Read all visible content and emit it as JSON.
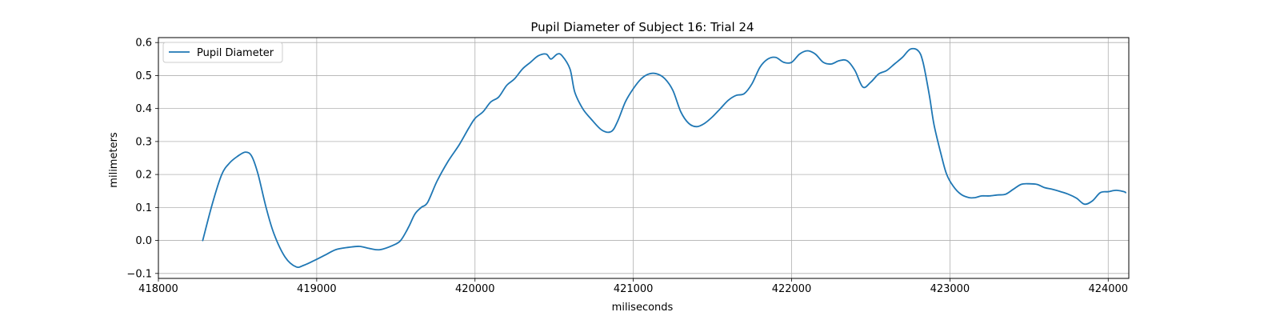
{
  "chart_data": {
    "type": "line",
    "title": "Pupil Diameter of Subject 16: Trial 24",
    "xlabel": "miliseconds",
    "ylabel": "milimeters",
    "xlim": [
      418000,
      424130
    ],
    "ylim": [
      -0.115,
      0.615
    ],
    "xticks": [
      418000,
      419000,
      420000,
      421000,
      422000,
      423000,
      424000
    ],
    "yticks": [
      -0.1,
      0.0,
      0.1,
      0.2,
      0.3,
      0.4,
      0.5,
      0.6
    ],
    "xtick_labels": [
      "418000",
      "419000",
      "420000",
      "421000",
      "422000",
      "423000",
      "424000"
    ],
    "ytick_labels": [
      "−0.1",
      "0.0",
      "0.1",
      "0.2",
      "0.3",
      "0.4",
      "0.5",
      "0.6"
    ],
    "grid": true,
    "legend": "upper-left",
    "series": [
      {
        "name": "Pupil Diameter",
        "color": "#1f77b4",
        "x": [
          418280,
          418340,
          418400,
          418450,
          418500,
          418550,
          418590,
          418630,
          418680,
          418730,
          418800,
          418870,
          418920,
          418980,
          419050,
          419120,
          419200,
          419270,
          419340,
          419400,
          419480,
          419530,
          419580,
          419620,
          419660,
          419700,
          419760,
          419830,
          419900,
          419960,
          420000,
          420050,
          420100,
          420150,
          420200,
          420250,
          420300,
          420350,
          420400,
          420450,
          420480,
          420520,
          420550,
          420600,
          420630,
          420680,
          420730,
          420800,
          420860,
          420900,
          420950,
          421000,
          421050,
          421100,
          421150,
          421200,
          421250,
          421300,
          421350,
          421400,
          421450,
          421500,
          421550,
          421600,
          421650,
          421700,
          421750,
          421800,
          421850,
          421900,
          421950,
          422000,
          422050,
          422100,
          422150,
          422200,
          422250,
          422300,
          422350,
          422400,
          422450,
          422500,
          422550,
          422600,
          422650,
          422700,
          422750,
          422800,
          422830,
          422870,
          422900,
          422950,
          422980,
          423020,
          423070,
          423120,
          423160,
          423200,
          423250,
          423300,
          423350,
          423400,
          423450,
          423500,
          423550,
          423600,
          423650,
          423700,
          423750,
          423800,
          423850,
          423900,
          423950,
          424000,
          424050,
          424100,
          424110
        ],
        "y": [
          0.0,
          0.11,
          0.2,
          0.235,
          0.255,
          0.268,
          0.255,
          0.2,
          0.1,
          0.02,
          -0.05,
          -0.08,
          -0.075,
          -0.062,
          -0.045,
          -0.028,
          -0.021,
          -0.018,
          -0.025,
          -0.028,
          -0.015,
          0.0,
          0.04,
          0.08,
          0.1,
          0.115,
          0.18,
          0.24,
          0.29,
          0.34,
          0.37,
          0.39,
          0.42,
          0.435,
          0.47,
          0.49,
          0.52,
          0.54,
          0.56,
          0.565,
          0.55,
          0.565,
          0.56,
          0.52,
          0.45,
          0.4,
          0.37,
          0.335,
          0.33,
          0.36,
          0.42,
          0.46,
          0.49,
          0.505,
          0.505,
          0.49,
          0.455,
          0.39,
          0.355,
          0.345,
          0.355,
          0.375,
          0.4,
          0.425,
          0.44,
          0.445,
          0.475,
          0.525,
          0.55,
          0.555,
          0.54,
          0.54,
          0.565,
          0.575,
          0.565,
          0.54,
          0.535,
          0.545,
          0.545,
          0.515,
          0.465,
          0.48,
          0.505,
          0.515,
          0.535,
          0.555,
          0.58,
          0.575,
          0.54,
          0.44,
          0.35,
          0.25,
          0.2,
          0.165,
          0.14,
          0.13,
          0.13,
          0.135,
          0.135,
          0.138,
          0.14,
          0.155,
          0.17,
          0.172,
          0.17,
          0.16,
          0.155,
          0.148,
          0.14,
          0.128,
          0.11,
          0.12,
          0.145,
          0.148,
          0.152,
          0.148,
          0.145
        ]
      }
    ]
  }
}
